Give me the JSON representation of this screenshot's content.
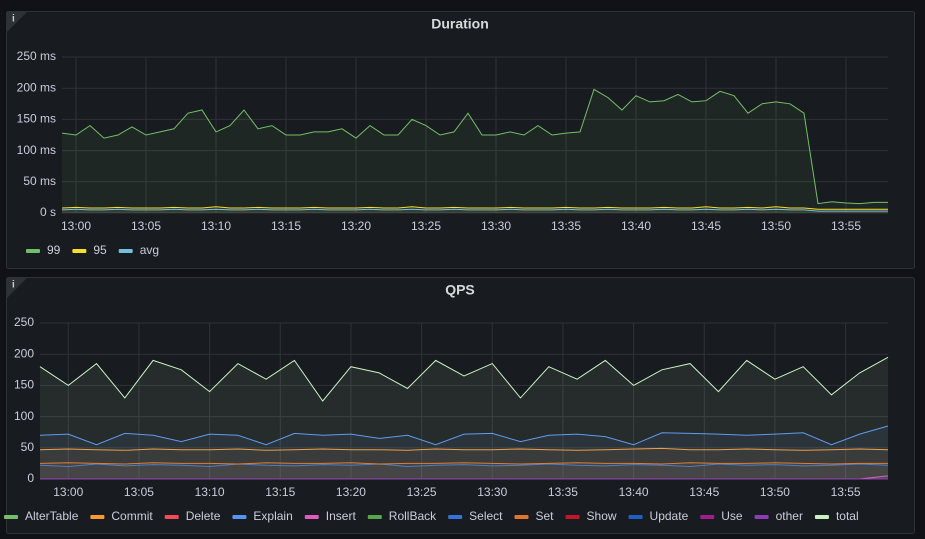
{
  "chart_data": [
    {
      "type": "line",
      "title": "Duration",
      "grid": true,
      "legend": "bottom",
      "x": [
        "12:59",
        "13:00",
        "13:01",
        "13:02",
        "13:03",
        "13:04",
        "13:05",
        "13:06",
        "13:07",
        "13:08",
        "13:09",
        "13:10",
        "13:11",
        "13:12",
        "13:13",
        "13:14",
        "13:15",
        "13:16",
        "13:17",
        "13:18",
        "13:19",
        "13:20",
        "13:21",
        "13:22",
        "13:23",
        "13:24",
        "13:25",
        "13:26",
        "13:27",
        "13:28",
        "13:29",
        "13:30",
        "13:31",
        "13:32",
        "13:33",
        "13:34",
        "13:35",
        "13:36",
        "13:37",
        "13:38",
        "13:39",
        "13:40",
        "13:41",
        "13:42",
        "13:43",
        "13:44",
        "13:45",
        "13:46",
        "13:47",
        "13:48",
        "13:49",
        "13:50",
        "13:51",
        "13:52",
        "13:53",
        "13:54",
        "13:55",
        "13:56",
        "13:57",
        "13:58"
      ],
      "xlim": [
        "12:59",
        "13:58"
      ],
      "xticks": [
        "13:00",
        "13:05",
        "13:10",
        "13:15",
        "13:20",
        "13:25",
        "13:30",
        "13:35",
        "13:40",
        "13:45",
        "13:50",
        "13:55"
      ],
      "ylim": [
        0,
        250
      ],
      "yticks": [
        {
          "value": 0,
          "label": "0 s"
        },
        {
          "value": 50,
          "label": "50 ms"
        },
        {
          "value": 100,
          "label": "100 ms"
        },
        {
          "value": 150,
          "label": "150 ms"
        },
        {
          "value": 200,
          "label": "200 ms"
        },
        {
          "value": 250,
          "label": "250 ms"
        }
      ],
      "series": [
        {
          "name": "99",
          "color": "#73bf69",
          "values": [
            128,
            125,
            140,
            120,
            125,
            138,
            125,
            130,
            135,
            160,
            165,
            130,
            140,
            165,
            135,
            140,
            125,
            125,
            130,
            130,
            135,
            120,
            140,
            125,
            125,
            150,
            140,
            125,
            130,
            160,
            125,
            125,
            130,
            125,
            140,
            125,
            128,
            130,
            198,
            185,
            165,
            188,
            178,
            180,
            190,
            178,
            180,
            195,
            188,
            160,
            175,
            178,
            175,
            160,
            15,
            18,
            16,
            15,
            17,
            17
          ]
        },
        {
          "name": "95",
          "color": "#fade2a",
          "values": [
            8,
            9,
            8,
            8,
            9,
            8,
            8,
            8,
            9,
            8,
            8,
            10,
            8,
            8,
            9,
            8,
            8,
            8,
            9,
            8,
            8,
            8,
            9,
            8,
            8,
            10,
            8,
            8,
            9,
            8,
            8,
            8,
            9,
            8,
            8,
            8,
            9,
            8,
            8,
            9,
            8,
            8,
            8,
            9,
            8,
            8,
            10,
            8,
            8,
            9,
            8,
            10,
            8,
            8,
            6,
            6,
            6,
            6,
            6,
            6
          ]
        },
        {
          "name": "avg",
          "color": "#73c0de",
          "values": [
            5,
            6,
            5,
            5,
            6,
            5,
            5,
            5,
            6,
            5,
            5,
            6,
            5,
            5,
            6,
            5,
            5,
            5,
            6,
            5,
            5,
            5,
            6,
            5,
            5,
            6,
            5,
            5,
            6,
            5,
            5,
            5,
            6,
            5,
            5,
            5,
            6,
            5,
            5,
            6,
            5,
            5,
            5,
            6,
            5,
            5,
            6,
            5,
            5,
            6,
            5,
            6,
            5,
            5,
            3,
            3,
            3,
            3,
            3,
            3
          ]
        }
      ]
    },
    {
      "type": "line",
      "title": "QPS",
      "grid": true,
      "legend": "bottom",
      "x": [
        "12:58",
        "13:00",
        "13:02",
        "13:04",
        "13:06",
        "13:08",
        "13:10",
        "13:12",
        "13:14",
        "13:16",
        "13:18",
        "13:20",
        "13:22",
        "13:24",
        "13:26",
        "13:28",
        "13:30",
        "13:32",
        "13:34",
        "13:36",
        "13:38",
        "13:40",
        "13:42",
        "13:44",
        "13:46",
        "13:48",
        "13:50",
        "13:52",
        "13:54",
        "13:56",
        "13:58"
      ],
      "xlim": [
        "12:58",
        "13:58"
      ],
      "xticks": [
        "13:00",
        "13:05",
        "13:10",
        "13:15",
        "13:20",
        "13:25",
        "13:30",
        "13:35",
        "13:40",
        "13:45",
        "13:50",
        "13:55"
      ],
      "ylim": [
        0,
        250
      ],
      "yticks": [
        0,
        50,
        100,
        150,
        200,
        250
      ],
      "series": [
        {
          "name": "AlterTable",
          "color": "#73bf69",
          "values": [
            0,
            0,
            0,
            0,
            0,
            0,
            0,
            0,
            0,
            0,
            0,
            0,
            0,
            0,
            0,
            0,
            0,
            0,
            0,
            0,
            0,
            0,
            0,
            0,
            0,
            0,
            0,
            0,
            0,
            0,
            0
          ]
        },
        {
          "name": "Commit",
          "color": "#ff9830",
          "values": [
            47,
            48,
            47,
            46,
            48,
            47,
            47,
            48,
            46,
            47,
            48,
            47,
            47,
            46,
            48,
            47,
            47,
            48,
            47,
            46,
            47,
            48,
            49,
            47,
            47,
            48,
            47,
            46,
            47,
            48,
            47
          ]
        },
        {
          "name": "Delete",
          "color": "#f2495c",
          "values": [
            0,
            0,
            0,
            0,
            0,
            0,
            0,
            0,
            0,
            0,
            0,
            0,
            0,
            0,
            0,
            0,
            0,
            0,
            0,
            0,
            0,
            0,
            0,
            0,
            0,
            0,
            0,
            0,
            0,
            0,
            0
          ]
        },
        {
          "name": "Explain",
          "color": "#5794f2",
          "values": [
            70,
            72,
            55,
            73,
            70,
            60,
            72,
            70,
            55,
            73,
            70,
            72,
            65,
            70,
            55,
            72,
            73,
            60,
            70,
            72,
            68,
            55,
            74,
            73,
            72,
            70,
            72,
            74,
            55,
            72,
            85
          ]
        },
        {
          "name": "Insert",
          "color": "#e05bbf",
          "values": [
            0,
            0,
            0,
            0,
            0,
            0,
            0,
            0,
            0,
            0,
            0,
            0,
            0,
            0,
            0,
            0,
            0,
            0,
            0,
            0,
            0,
            0,
            0,
            0,
            0,
            0,
            0,
            0,
            0,
            0,
            5
          ]
        },
        {
          "name": "RollBack",
          "color": "#56a64b",
          "values": [
            0,
            0,
            0,
            0,
            0,
            0,
            0,
            0,
            0,
            0,
            0,
            0,
            0,
            0,
            0,
            0,
            0,
            0,
            0,
            0,
            0,
            0,
            0,
            0,
            0,
            0,
            0,
            0,
            0,
            0,
            0
          ]
        },
        {
          "name": "Select",
          "color": "#3274d9",
          "values": [
            22,
            20,
            24,
            21,
            23,
            22,
            20,
            24,
            22,
            21,
            23,
            22,
            24,
            20,
            22,
            23,
            21,
            22,
            24,
            22,
            21,
            23,
            22,
            20,
            24,
            22,
            23,
            21,
            22,
            24,
            22
          ]
        },
        {
          "name": "Set",
          "color": "#e0752d",
          "values": [
            25,
            26,
            25,
            24,
            26,
            25,
            25,
            24,
            26,
            25,
            25,
            26,
            24,
            25,
            25,
            26,
            25,
            24,
            25,
            26,
            25,
            25,
            24,
            26,
            25,
            25,
            26,
            25,
            24,
            25,
            25
          ]
        },
        {
          "name": "Show",
          "color": "#c4162a",
          "values": [
            0,
            0,
            0,
            0,
            0,
            0,
            0,
            0,
            0,
            0,
            0,
            0,
            0,
            0,
            0,
            0,
            0,
            0,
            0,
            0,
            0,
            0,
            0,
            0,
            0,
            0,
            0,
            0,
            0,
            0,
            0
          ]
        },
        {
          "name": "Update",
          "color": "#1f60c4",
          "values": [
            0,
            0,
            0,
            0,
            0,
            0,
            0,
            0,
            0,
            0,
            0,
            0,
            0,
            0,
            0,
            0,
            0,
            0,
            0,
            0,
            0,
            0,
            0,
            0,
            0,
            0,
            0,
            0,
            0,
            0,
            0
          ]
        },
        {
          "name": "Use",
          "color": "#a01c8f",
          "values": [
            0,
            0,
            0,
            0,
            0,
            0,
            0,
            0,
            0,
            0,
            0,
            0,
            0,
            0,
            0,
            0,
            0,
            0,
            0,
            0,
            0,
            0,
            0,
            0,
            0,
            0,
            0,
            0,
            0,
            0,
            0
          ]
        },
        {
          "name": "other",
          "color": "#8f3bb8",
          "values": [
            0,
            0,
            0,
            0,
            0,
            0,
            0,
            0,
            0,
            0,
            0,
            0,
            0,
            0,
            0,
            0,
            0,
            0,
            0,
            0,
            0,
            0,
            0,
            0,
            0,
            0,
            0,
            0,
            0,
            0,
            0
          ]
        },
        {
          "name": "total",
          "color": "#c8f2c2",
          "values": [
            180,
            150,
            185,
            130,
            190,
            175,
            140,
            185,
            160,
            190,
            125,
            180,
            170,
            145,
            190,
            165,
            185,
            130,
            180,
            160,
            190,
            150,
            175,
            185,
            140,
            190,
            160,
            180,
            135,
            170,
            195
          ]
        }
      ]
    }
  ]
}
